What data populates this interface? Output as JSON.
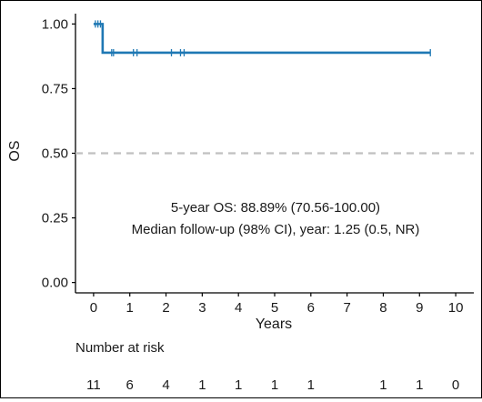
{
  "chart_data": {
    "type": "line",
    "subtype": "kaplan-meier",
    "xlabel": "Years",
    "ylabel": "OS",
    "xlim": [
      -0.5,
      10.5
    ],
    "ylim": [
      -0.04,
      1.04
    ],
    "x_ticks": [
      0,
      1,
      2,
      3,
      4,
      5,
      6,
      7,
      8,
      9,
      10
    ],
    "y_ticks": [
      "0.00",
      "0.25",
      "0.50",
      "0.75",
      "1.00"
    ],
    "grid": false,
    "legend": "none",
    "reference_line": {
      "y": 0.5,
      "style": "dashed",
      "color": "#c0c0c0"
    },
    "series": [
      {
        "color": "#1f78b4",
        "steps": [
          [
            0,
            1.0
          ],
          [
            0.25,
            1.0
          ],
          [
            0.25,
            0.8889
          ],
          [
            9.3,
            0.8889
          ]
        ],
        "censor_x": [
          0.05,
          0.12,
          0.19,
          0.5,
          0.55,
          1.1,
          1.2,
          2.15,
          2.4,
          2.5,
          9.3
        ]
      }
    ],
    "annotations": [
      "5-year OS: 88.89% (70.56-100.00)",
      "Median follow-up (98% CI), year: 1.25 (0.5, NR)"
    ],
    "risk_table": {
      "title": "Number at risk",
      "times": [
        0,
        1,
        2,
        3,
        4,
        5,
        6,
        7,
        8,
        9,
        10
      ],
      "counts": [
        "11",
        "6",
        "4",
        "1",
        "1",
        "1",
        "1",
        "",
        "1",
        "1",
        "0"
      ]
    }
  }
}
